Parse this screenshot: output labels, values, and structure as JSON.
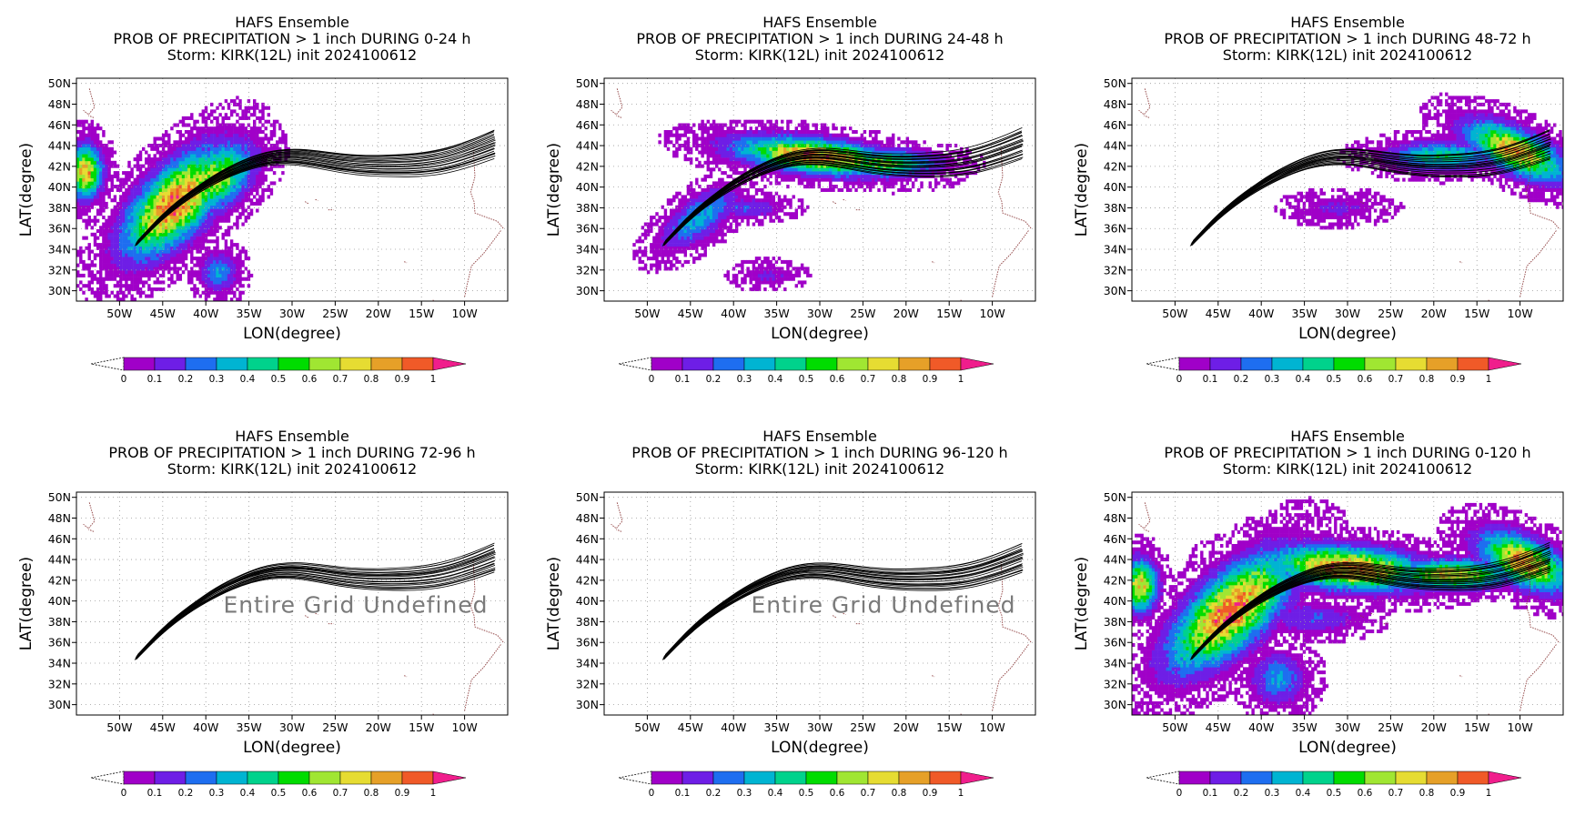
{
  "figure": {
    "panels": [
      {
        "title_lines": [
          "HAFS Ensemble",
          "PROB OF PRECIPITATION > 1 inch DURING  0-24 h",
          "Storm: KIRK(12L) init 2024100612"
        ],
        "period": "0-24 h",
        "state": "data",
        "undefined_text": ""
      },
      {
        "title_lines": [
          "HAFS Ensemble",
          "PROB OF PRECIPITATION > 1 inch DURING 24-48 h",
          "Storm: KIRK(12L) init 2024100612"
        ],
        "period": "24-48 h",
        "state": "data",
        "undefined_text": ""
      },
      {
        "title_lines": [
          "HAFS Ensemble",
          "PROB OF PRECIPITATION > 1 inch DURING 48-72 h",
          "Storm: KIRK(12L) init 2024100612"
        ],
        "period": "48-72 h",
        "state": "data",
        "undefined_text": ""
      },
      {
        "title_lines": [
          "HAFS Ensemble",
          "PROB OF PRECIPITATION > 1 inch DURING 72-96 h",
          "Storm: KIRK(12L) init 2024100612"
        ],
        "period": "72-96 h",
        "state": "undefined",
        "undefined_text": "Entire Grid Undefined"
      },
      {
        "title_lines": [
          "HAFS Ensemble",
          "PROB OF PRECIPITATION > 1 inch DURING 96-120 h",
          "Storm: KIRK(12L) init 2024100612"
        ],
        "period": "96-120 h",
        "state": "undefined",
        "undefined_text": "Entire Grid Undefined"
      },
      {
        "title_lines": [
          "HAFS Ensemble",
          "PROB OF PRECIPITATION > 1 inch DURING 0-120 h",
          "Storm: KIRK(12L) init 2024100612"
        ],
        "period": "0-120 h",
        "state": "data",
        "undefined_text": ""
      }
    ]
  },
  "chart_data": {
    "type": "heatmap",
    "xlabel": "LON(degree)",
    "ylabel": "LAT(degree)",
    "xlim": [
      -55,
      -5
    ],
    "ylim": [
      29,
      50.5
    ],
    "x_ticks": [
      -50,
      -45,
      -40,
      -35,
      -30,
      -25,
      -20,
      -15,
      -10
    ],
    "x_tick_labels": [
      "50W",
      "45W",
      "40W",
      "35W",
      "30W",
      "25W",
      "20W",
      "15W",
      "10W"
    ],
    "y_ticks": [
      30,
      32,
      34,
      36,
      38,
      40,
      42,
      44,
      46,
      48,
      50
    ],
    "y_tick_labels": [
      "30N",
      "32N",
      "34N",
      "36N",
      "38N",
      "40N",
      "42N",
      "44N",
      "46N",
      "48N",
      "50N"
    ],
    "grid": "dotted",
    "colorbar": {
      "levels": [
        0,
        0.1,
        0.2,
        0.3,
        0.4,
        0.5,
        0.6,
        0.7,
        0.8,
        0.9,
        1
      ],
      "labels": [
        "0",
        "0.1",
        "0.2",
        "0.3",
        "0.4",
        "0.5",
        "0.6",
        "0.7",
        "0.8",
        "0.9",
        "1"
      ],
      "colors": [
        "#a000c8",
        "#6e1ee6",
        "#1e6ef0",
        "#00b4d2",
        "#00d28c",
        "#00dc00",
        "#a0e632",
        "#e6dc32",
        "#e6a028",
        "#f05a28",
        "#f01e8c"
      ],
      "under_color": "#ffffff"
    },
    "track": {
      "center": [
        [
          -48,
          34.6
        ],
        [
          -45,
          37.2
        ],
        [
          -42,
          39.2
        ],
        [
          -39,
          40.8
        ],
        [
          -36,
          42
        ],
        [
          -33,
          42.8
        ],
        [
          -30,
          43
        ],
        [
          -27,
          42.7
        ],
        [
          -24,
          42.3
        ],
        [
          -21,
          42.1
        ],
        [
          -18,
          42.1
        ],
        [
          -15,
          42.2
        ],
        [
          -12,
          42.6
        ],
        [
          -9,
          43.4
        ],
        [
          -6.5,
          44.2
        ]
      ],
      "members": 20,
      "spread_deg": 1.6
    },
    "panels": [
      {
        "period": "0-24 h",
        "blobs": [
          {
            "lon": -43.5,
            "lat": 38.5,
            "rlon": 6.5,
            "rlat": 3.0,
            "angle": 38,
            "peak": 0.95
          },
          {
            "lon": -39.0,
            "lat": 40.8,
            "rlon": 4.5,
            "rlat": 2.6,
            "angle": 30,
            "peak": 0.7
          },
          {
            "lon": -54.0,
            "lat": 41.5,
            "rlon": 1.8,
            "rlat": 2.3,
            "angle": 0,
            "peak": 0.85
          },
          {
            "lon": -38.5,
            "lat": 31.8,
            "rlon": 2.0,
            "rlat": 1.8,
            "angle": 0,
            "peak": 0.3
          }
        ]
      },
      {
        "period": "24-48 h",
        "blobs": [
          {
            "lon": -30.5,
            "lat": 43.0,
            "rlon": 8.5,
            "rlat": 1.5,
            "angle": -5,
            "peak": 0.9
          },
          {
            "lon": -23.0,
            "lat": 42.3,
            "rlon": 6.0,
            "rlat": 1.2,
            "angle": 0,
            "peak": 0.6
          },
          {
            "lon": -44.0,
            "lat": 37.0,
            "rlon": 4.5,
            "rlat": 1.8,
            "angle": 30,
            "peak": 0.35
          },
          {
            "lon": -38.5,
            "lat": 38.0,
            "rlon": 4.0,
            "rlat": 0.9,
            "angle": 0,
            "peak": 0.2
          },
          {
            "lon": -36.0,
            "lat": 31.5,
            "rlon": 3.0,
            "rlat": 1.0,
            "angle": 0,
            "peak": 0.12
          }
        ]
      },
      {
        "period": "48-72 h",
        "blobs": [
          {
            "lon": -10.5,
            "lat": 43.5,
            "rlon": 5.5,
            "rlat": 1.9,
            "angle": -20,
            "peak": 0.85
          },
          {
            "lon": -19.0,
            "lat": 43.0,
            "rlon": 6.0,
            "rlat": 1.3,
            "angle": 0,
            "peak": 0.45
          },
          {
            "lon": -31.0,
            "lat": 38.0,
            "rlon": 4.5,
            "rlat": 1.2,
            "angle": 0,
            "peak": 0.12
          }
        ]
      },
      {
        "period": "72-96 h",
        "blobs": []
      },
      {
        "period": "96-120 h",
        "blobs": []
      },
      {
        "period": "0-120 h",
        "blobs": [
          {
            "lon": -43.5,
            "lat": 39.0,
            "rlon": 7.5,
            "rlat": 3.2,
            "angle": 35,
            "peak": 0.95
          },
          {
            "lon": -30.0,
            "lat": 43.2,
            "rlon": 8.5,
            "rlat": 1.9,
            "angle": -4,
            "peak": 0.9
          },
          {
            "lon": -18.0,
            "lat": 42.6,
            "rlon": 6.5,
            "rlat": 1.3,
            "angle": 0,
            "peak": 0.75
          },
          {
            "lon": -9.5,
            "lat": 43.8,
            "rlon": 5.0,
            "rlat": 2.1,
            "angle": -20,
            "peak": 0.85
          },
          {
            "lon": -54.0,
            "lat": 41.5,
            "rlon": 1.8,
            "rlat": 2.3,
            "angle": 0,
            "peak": 0.8
          },
          {
            "lon": -38.0,
            "lat": 32.5,
            "rlon": 3.0,
            "rlat": 2.3,
            "angle": 0,
            "peak": 0.3
          },
          {
            "lon": -34.0,
            "lat": 38.3,
            "rlon": 5.0,
            "rlat": 1.4,
            "angle": 0,
            "peak": 0.2
          }
        ]
      }
    ]
  }
}
